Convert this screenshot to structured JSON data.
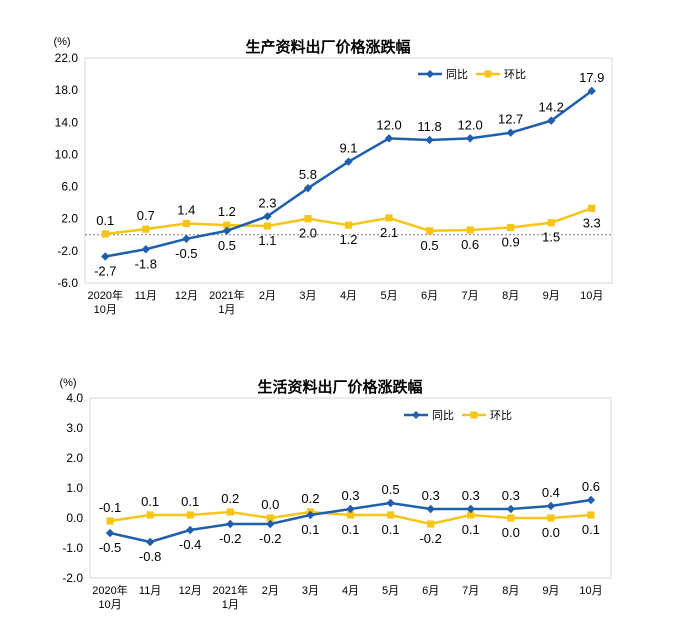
{
  "chart_data": [
    {
      "type": "line",
      "title": "生产资料出厂价格涨跌幅",
      "unit_label": "(%)",
      "categories": [
        "2020年\n10月",
        "11月",
        "12月",
        "2021年\n1月",
        "2月",
        "3月",
        "4月",
        "5月",
        "6月",
        "7月",
        "8月",
        "9月",
        "10月"
      ],
      "ylim": [
        -6.0,
        22.0
      ],
      "yticks": [
        22.0,
        18.0,
        14.0,
        10.0,
        6.0,
        2.0,
        -2.0,
        -6.0
      ],
      "ytick_labels": [
        "22.0",
        "18.0",
        "14.0",
        "10.0",
        "6.0",
        "2.0",
        "-2.0",
        "-6.0"
      ],
      "legend_position": "top-right",
      "series": [
        {
          "name": "同比",
          "color": "#1f5fad",
          "marker": "diamond",
          "values": [
            -2.7,
            -1.8,
            -0.5,
            0.5,
            2.3,
            5.8,
            9.1,
            12.0,
            11.8,
            12.0,
            12.7,
            14.2,
            17.9
          ],
          "labels": [
            "-2.7",
            "-1.8",
            "-0.5",
            "0.5",
            "2.3",
            "5.8",
            "9.1",
            "12.0",
            "11.8",
            "12.0",
            "12.7",
            "14.2",
            "17.9"
          ],
          "label_pos": [
            "below",
            "below",
            "below",
            "below",
            "above",
            "above",
            "above",
            "above",
            "above",
            "above",
            "above",
            "above",
            "above"
          ]
        },
        {
          "name": "环比",
          "color": "#f5c518",
          "marker": "square",
          "values": [
            0.1,
            0.7,
            1.4,
            1.2,
            1.1,
            2.0,
            1.2,
            2.1,
            0.5,
            0.6,
            0.9,
            1.5,
            3.3
          ],
          "labels": [
            "0.1",
            "0.7",
            "1.4",
            "1.2",
            "1.1",
            "2.0",
            "1.2",
            "2.1",
            "0.5",
            "0.6",
            "0.9",
            "1.5",
            "3.3"
          ],
          "label_pos": [
            "above",
            "above",
            "above",
            "above",
            "below",
            "below",
            "below",
            "below",
            "below",
            "below",
            "below",
            "below",
            "below"
          ]
        }
      ]
    },
    {
      "type": "line",
      "title": "生活资料出厂价格涨跌幅",
      "unit_label": "(%)",
      "categories": [
        "2020年\n10月",
        "11月",
        "12月",
        "2021年\n1月",
        "2月",
        "3月",
        "4月",
        "5月",
        "6月",
        "7月",
        "8月",
        "9月",
        "10月"
      ],
      "ylim": [
        -2.0,
        4.0
      ],
      "yticks": [
        4.0,
        3.0,
        2.0,
        1.0,
        0.0,
        -1.0,
        -2.0
      ],
      "ytick_labels": [
        "4.0",
        "3.0",
        "2.0",
        "1.0",
        "0.0",
        "-1.0",
        "-2.0"
      ],
      "legend_position": "top-right",
      "series": [
        {
          "name": "同比",
          "color": "#1f5fad",
          "marker": "diamond",
          "values": [
            -0.5,
            -0.8,
            -0.4,
            -0.2,
            -0.2,
            0.1,
            0.3,
            0.5,
            0.3,
            0.3,
            0.3,
            0.4,
            0.6
          ],
          "labels": [
            "-0.5",
            "-0.8",
            "-0.4",
            "-0.2",
            "-0.2",
            "0.1",
            "0.3",
            "0.5",
            "0.3",
            "0.3",
            "0.3",
            "0.4",
            "0.6"
          ],
          "label_pos": [
            "below",
            "below",
            "below",
            "below",
            "below",
            "below",
            "above",
            "above",
            "above",
            "above",
            "above",
            "above",
            "above"
          ]
        },
        {
          "name": "环比",
          "color": "#f5c518",
          "marker": "square",
          "values": [
            -0.1,
            0.1,
            0.1,
            0.2,
            0.0,
            0.2,
            0.1,
            0.1,
            -0.2,
            0.1,
            0.0,
            0.0,
            0.1
          ],
          "labels": [
            "-0.1",
            "0.1",
            "0.1",
            "0.2",
            "0.0",
            "0.2",
            "0.1",
            "0.1",
            "-0.2",
            "0.1",
            "0.0",
            "0.0",
            "0.1"
          ],
          "label_pos": [
            "above",
            "above",
            "above",
            "above",
            "above",
            "above",
            "below",
            "below",
            "below",
            "below",
            "below",
            "below",
            "below"
          ]
        }
      ]
    }
  ]
}
